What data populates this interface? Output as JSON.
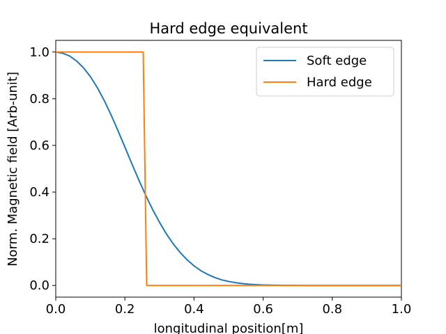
{
  "chart_data": {
    "type": "line",
    "title": "Hard edge equivalent",
    "xlabel": "longitudinal position[m]",
    "ylabel": "Norm. Magnetic field [Arb-unit]",
    "xlim": [
      0.0,
      1.0
    ],
    "ylim": [
      -0.05,
      1.05
    ],
    "xticks": [
      0.0,
      0.2,
      0.4,
      0.6,
      0.8,
      1.0
    ],
    "xtick_labels": [
      "0.0",
      "0.2",
      "0.4",
      "0.6",
      "0.8",
      "1.0"
    ],
    "yticks": [
      0.0,
      0.2,
      0.4,
      0.6,
      0.8,
      1.0
    ],
    "ytick_labels": [
      "0.0",
      "0.2",
      "0.4",
      "0.6",
      "0.8",
      "1.0"
    ],
    "grid": false,
    "legend_position": "top-right",
    "series": [
      {
        "name": "Soft edge",
        "color": "#1f77b4",
        "x": [
          0.0,
          0.02,
          0.04,
          0.06,
          0.08,
          0.1,
          0.12,
          0.14,
          0.16,
          0.18,
          0.2,
          0.22,
          0.24,
          0.26,
          0.28,
          0.3,
          0.32,
          0.34,
          0.36,
          0.38,
          0.4,
          0.42,
          0.44,
          0.46,
          0.48,
          0.5,
          0.52,
          0.54,
          0.56,
          0.58,
          0.6,
          0.62,
          0.64,
          0.66,
          0.68,
          0.7,
          0.72,
          0.74,
          0.76,
          0.78,
          0.8,
          0.85,
          0.9,
          0.95,
          1.0
        ],
        "y": [
          1.0,
          0.995,
          0.983,
          0.962,
          0.933,
          0.895,
          0.848,
          0.793,
          0.731,
          0.663,
          0.593,
          0.522,
          0.453,
          0.387,
          0.326,
          0.271,
          0.221,
          0.178,
          0.141,
          0.11,
          0.084,
          0.063,
          0.047,
          0.034,
          0.024,
          0.017,
          0.012,
          0.008,
          0.005,
          0.0035,
          0.0023,
          0.0015,
          0.0009,
          0.0006,
          0.0004,
          0.0002,
          0.0001,
          0.0001,
          0.0,
          0.0,
          0.0,
          0.0,
          0.0,
          0.0,
          0.0
        ]
      },
      {
        "name": "Hard edge",
        "color": "#ff7f0e",
        "x": [
          0.0,
          0.253,
          0.263,
          1.0
        ],
        "y": [
          1.0,
          1.0,
          0.0,
          0.0
        ]
      }
    ]
  }
}
